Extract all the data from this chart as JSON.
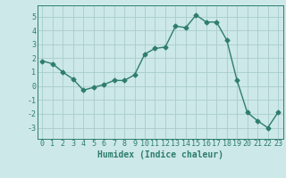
{
  "x": [
    0,
    1,
    2,
    3,
    4,
    5,
    6,
    7,
    8,
    9,
    10,
    11,
    12,
    13,
    14,
    15,
    16,
    17,
    18,
    19,
    20,
    21,
    22,
    23
  ],
  "y": [
    1.8,
    1.6,
    1.0,
    0.5,
    -0.3,
    -0.1,
    0.1,
    0.4,
    0.4,
    0.8,
    2.3,
    2.7,
    2.8,
    4.3,
    4.2,
    5.1,
    4.6,
    4.6,
    3.3,
    0.4,
    -1.9,
    -2.5,
    -3.0,
    -1.9
  ],
  "line_color": "#2e7d6e",
  "marker": "D",
  "markersize": 2.5,
  "linewidth": 1.0,
  "bg_color": "#cce8e8",
  "grid_color": "#aacccc",
  "xlabel": "Humidex (Indice chaleur)",
  "xlabel_fontsize": 7,
  "xlim": [
    -0.5,
    23.5
  ],
  "ylim": [
    -3.8,
    5.8
  ],
  "yticks": [
    -3,
    -2,
    -1,
    0,
    1,
    2,
    3,
    4,
    5
  ],
  "xticks": [
    0,
    1,
    2,
    3,
    4,
    5,
    6,
    7,
    8,
    9,
    10,
    11,
    12,
    13,
    14,
    15,
    16,
    17,
    18,
    19,
    20,
    21,
    22,
    23
  ],
  "tick_color": "#2e7d6e",
  "tick_fontsize": 6,
  "spine_color": "#2e7d6e"
}
